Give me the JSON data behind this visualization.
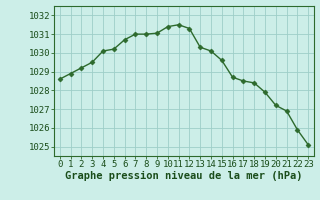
{
  "hours": [
    0,
    1,
    2,
    3,
    4,
    5,
    6,
    7,
    8,
    9,
    10,
    11,
    12,
    13,
    14,
    15,
    16,
    17,
    18,
    19,
    20,
    21,
    22,
    23
  ],
  "pressure": [
    1028.6,
    1028.9,
    1029.2,
    1029.5,
    1030.1,
    1030.2,
    1030.7,
    1031.0,
    1031.0,
    1031.05,
    1031.4,
    1031.5,
    1031.3,
    1030.3,
    1030.1,
    1029.6,
    1028.7,
    1028.5,
    1028.4,
    1027.9,
    1027.2,
    1026.9,
    1025.9,
    1025.1
  ],
  "line_color": "#2d6a2d",
  "marker": "D",
  "marker_size": 2.5,
  "bg_color": "#cceee8",
  "grid_color": "#9ecec8",
  "xlabel": "Graphe pression niveau de la mer (hPa)",
  "xlabel_fontsize": 7.5,
  "tick_fontsize": 6.5,
  "ylim": [
    1024.5,
    1032.5
  ],
  "yticks": [
    1025,
    1026,
    1027,
    1028,
    1029,
    1030,
    1031,
    1032
  ],
  "line_width": 1.0
}
